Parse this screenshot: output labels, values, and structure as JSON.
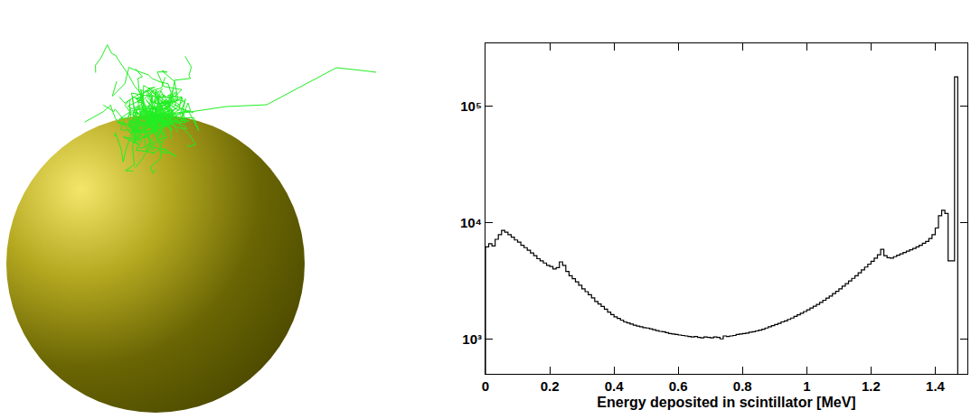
{
  "chart_data": {
    "type": "histogram",
    "x_label": "Energy deposited in scintillator [MeV]",
    "log": "y",
    "grid": false,
    "color": "#000000",
    "xlim": [
      0,
      1.5
    ],
    "xticks": [
      0,
      0.2,
      0.4,
      0.6,
      0.8,
      1,
      1.2,
      1.4
    ],
    "ylim": [
      500,
      350000
    ],
    "yticks": [
      {
        "value": 1000,
        "label": "10³"
      },
      {
        "value": 10000,
        "label": "10⁴"
      },
      {
        "value": 100000,
        "label": "10⁵"
      }
    ],
    "bins": [
      0,
      0.01,
      0.02,
      0.03,
      0.04,
      0.05,
      0.06,
      0.07,
      0.08,
      0.09,
      0.1,
      0.11,
      0.12,
      0.13,
      0.14,
      0.15,
      0.16,
      0.17,
      0.18,
      0.19,
      0.2,
      0.21,
      0.22,
      0.23,
      0.24,
      0.25,
      0.26,
      0.27,
      0.28,
      0.29,
      0.3,
      0.31,
      0.32,
      0.33,
      0.34,
      0.35,
      0.36,
      0.37,
      0.38,
      0.39,
      0.4,
      0.41,
      0.42,
      0.43,
      0.44,
      0.45,
      0.46,
      0.47,
      0.48,
      0.49,
      0.5,
      0.51,
      0.52,
      0.53,
      0.54,
      0.55,
      0.56,
      0.57,
      0.58,
      0.59,
      0.6,
      0.61,
      0.62,
      0.63,
      0.64,
      0.65,
      0.66,
      0.67,
      0.68,
      0.69,
      0.7,
      0.71,
      0.72,
      0.73,
      0.74,
      0.75,
      0.76,
      0.77,
      0.78,
      0.79,
      0.8,
      0.81,
      0.82,
      0.83,
      0.84,
      0.85,
      0.86,
      0.87,
      0.88,
      0.89,
      0.9,
      0.91,
      0.92,
      0.93,
      0.94,
      0.95,
      0.96,
      0.97,
      0.98,
      0.99,
      1,
      1.01,
      1.02,
      1.03,
      1.04,
      1.05,
      1.06,
      1.07,
      1.08,
      1.09,
      1.1,
      1.11,
      1.12,
      1.13,
      1.14,
      1.15,
      1.16,
      1.17,
      1.18,
      1.19,
      1.2,
      1.21,
      1.22,
      1.23,
      1.24,
      1.25,
      1.26,
      1.27,
      1.28,
      1.29,
      1.3,
      1.31,
      1.32,
      1.33,
      1.34,
      1.35,
      1.36,
      1.37,
      1.38,
      1.39,
      1.4,
      1.41,
      1.42,
      1.43,
      1.44,
      1.45,
      1.46,
      1.47
    ],
    "values": [
      6200,
      6600,
      6300,
      7200,
      7900,
      8600,
      8300,
      7900,
      7500,
      7100,
      6800,
      6400,
      6100,
      5800,
      5500,
      5200,
      4900,
      4700,
      4500,
      4300,
      4200,
      4000,
      4100,
      4600,
      4300,
      3800,
      3500,
      3300,
      3100,
      2900,
      2700,
      2550,
      2400,
      2250,
      2100,
      2000,
      1900,
      1800,
      1700,
      1620,
      1550,
      1500,
      1450,
      1400,
      1370,
      1340,
      1310,
      1290,
      1270,
      1250,
      1240,
      1220,
      1200,
      1180,
      1160,
      1150,
      1130,
      1110,
      1100,
      1090,
      1080,
      1070,
      1060,
      1050,
      1040,
      1050,
      1030,
      1020,
      1040,
      1030,
      1020,
      1040,
      1030,
      1000,
      1060,
      1050,
      1060,
      1070,
      1090,
      1100,
      1110,
      1120,
      1140,
      1150,
      1170,
      1190,
      1210,
      1240,
      1270,
      1300,
      1330,
      1360,
      1400,
      1430,
      1470,
      1510,
      1560,
      1610,
      1660,
      1720,
      1780,
      1840,
      1910,
      1980,
      2060,
      2150,
      2240,
      2340,
      2450,
      2570,
      2700,
      2840,
      2990,
      3150,
      3320,
      3500,
      3700,
      3920,
      4150,
      4400,
      4650,
      4950,
      5300,
      5900,
      5200,
      5000,
      4950,
      5100,
      5250,
      5400,
      5550,
      5700,
      5850,
      6000,
      6200,
      6400,
      6650,
      6900,
      7300,
      7900,
      9000,
      11500,
      12800,
      12000,
      4700,
      4700,
      180000
    ]
  }
}
